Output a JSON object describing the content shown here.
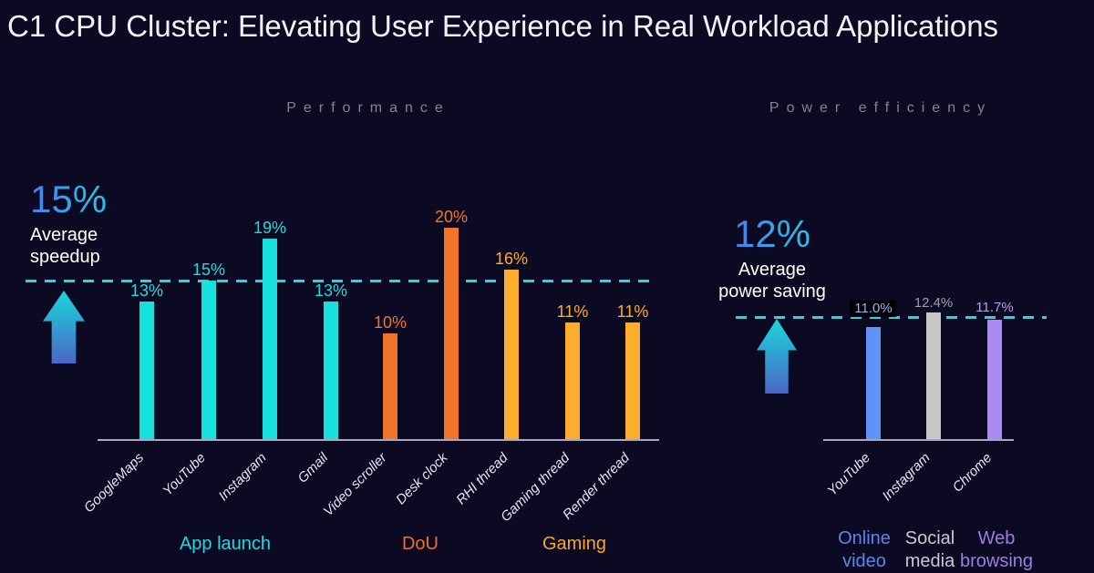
{
  "slide": {
    "title": "C1 CPU Cluster: Elevating User Experience in Real Workload Applications"
  },
  "chart_data": [
    {
      "type": "bar",
      "section_title": "Performance",
      "unit": "%",
      "categories": [
        "GoogleMaps",
        "YouTube",
        "Instagram",
        "Gmail",
        "Video scroller",
        "Desk clock",
        "RHI thread",
        "Gaming thread",
        "Render thread"
      ],
      "values": [
        13,
        15,
        19,
        13,
        10,
        20,
        16,
        11,
        11
      ],
      "value_labels": [
        "13%",
        "15%",
        "19%",
        "13%",
        "10%",
        "20%",
        "16%",
        "11%",
        "11%"
      ],
      "bar_colors": [
        "#16e1dd",
        "#16e1dd",
        "#16e1dd",
        "#16e1dd",
        "#f0752b",
        "#f0752b",
        "#fbad2d",
        "#fbad2d",
        "#fbad2d"
      ],
      "label_colors": [
        "#23d9e0",
        "#23d9e0",
        "#23d9e0",
        "#23d9e0",
        "#f0752b",
        "#f0752b",
        "#fbad2d",
        "#fbad2d",
        "#fbad2d"
      ],
      "groups": [
        {
          "label": "App launch",
          "color": "#19dce2"
        },
        {
          "label": "DoU",
          "color": "#ed6f28"
        },
        {
          "label": "Gaming",
          "color": "#f6a82c"
        }
      ],
      "average": {
        "headline": "15%",
        "caption": "Average\nspeedup",
        "line_value": 15,
        "line_color": "#28d5e0",
        "headline_gradient": [
          "#4b7de8",
          "#26c5e6"
        ]
      },
      "xlabel": "",
      "ylabel": "",
      "ylim": [
        0,
        21
      ],
      "grid": false,
      "legend": false
    },
    {
      "type": "bar",
      "section_title": "Power efficiency",
      "unit": "%",
      "categories": [
        "YouTube",
        "Instagram",
        "Chrome"
      ],
      "values": [
        11.0,
        12.4,
        11.7
      ],
      "value_labels": [
        "11.0%",
        "12.4%",
        "11.7%"
      ],
      "bar_colors": [
        "#6193f6",
        "#c6c5c8",
        "#aa8af1"
      ],
      "label_colors": [
        "#8db4f5",
        "#9fa0ab",
        "#bb9ff5"
      ],
      "value_label_backgrounds": [
        "#000000",
        null,
        null
      ],
      "groups": [
        {
          "label": "Online\nvideo",
          "color": "#5b86ea"
        },
        {
          "label": "Social\nmedia",
          "color": "#c8c8d2"
        },
        {
          "label": "Web\nbrowsing",
          "color": "#9d7fe2"
        }
      ],
      "average": {
        "headline": "12%",
        "caption": "Average\npower saving",
        "line_value": 12,
        "line_color": "#28d5e0",
        "headline_gradient": [
          "#4b7de8",
          "#26c5e6"
        ]
      },
      "xlabel": "",
      "ylabel": "",
      "ylim": [
        0,
        14
      ],
      "grid": false,
      "legend": false
    }
  ]
}
